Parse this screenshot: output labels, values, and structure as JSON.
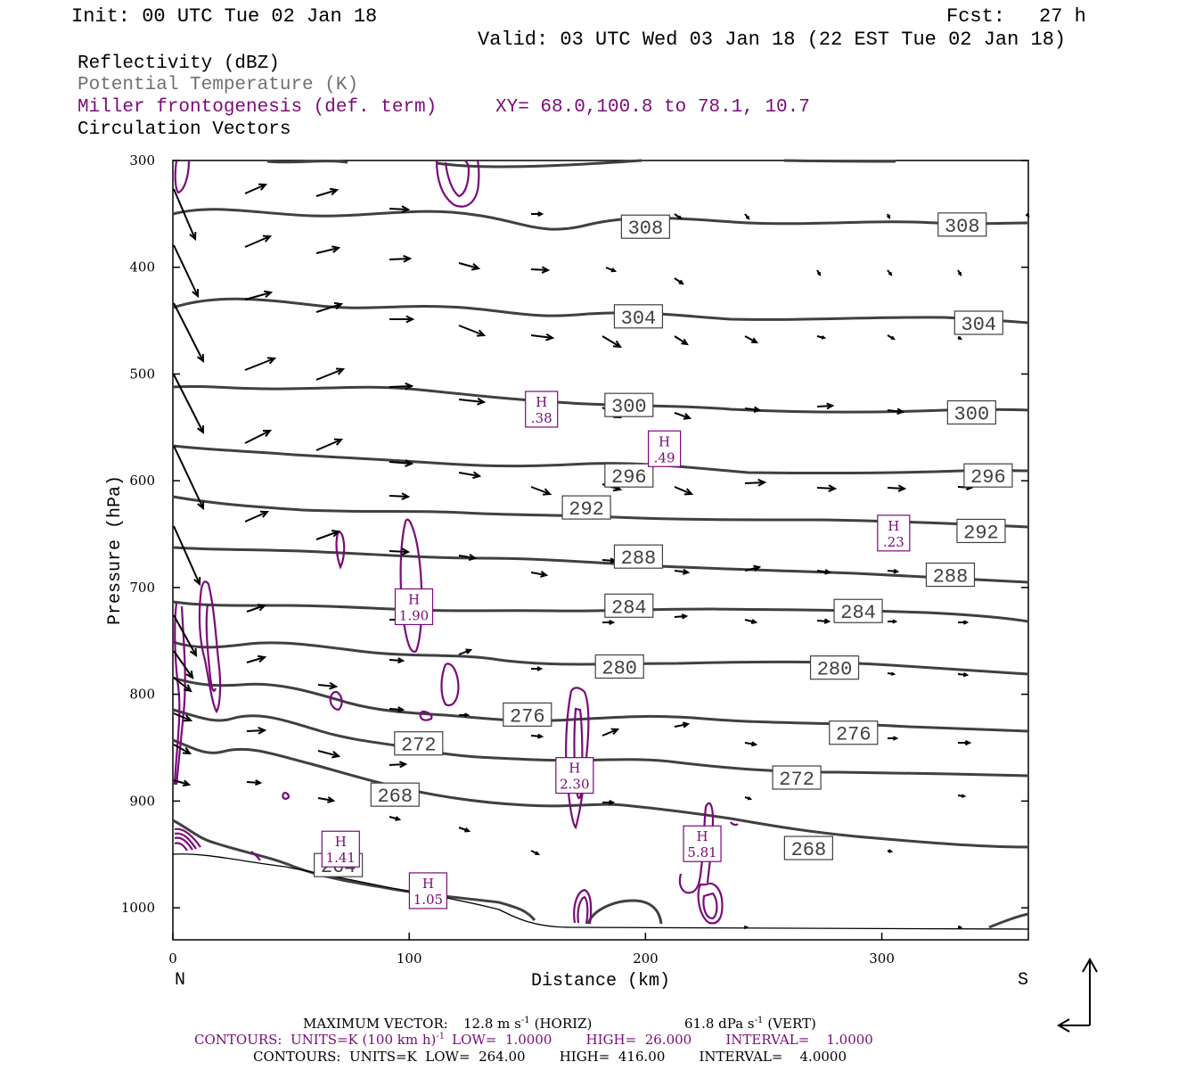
{
  "header": {
    "init": "Init: 00 UTC Tue 02 Jan 18",
    "fcst_label": "Fcst:",
    "fcst_value": "27 h",
    "valid": "Valid: 03 UTC Wed 03 Jan 18 (22 EST Tue 02 Jan 18)"
  },
  "legend": {
    "reflectivity": "Reflectivity (dBZ)",
    "theta": "Potential Temperature (K)",
    "frontogenesis": "Miller frontogenesis (def. term)",
    "xy": "XY=  68.0,100.8 to  78.1, 10.7",
    "vectors": "Circulation Vectors"
  },
  "colors": {
    "theta": "#404040",
    "frontogenesis": "#7a0a7a",
    "vector": "#000000",
    "frame": "#000000"
  },
  "chart_data": {
    "type": "cross-section",
    "xlabel": "Distance (km)",
    "ylabel": "Pressure (hPa)",
    "xlim": [
      0,
      362
    ],
    "ylim": [
      1030,
      300
    ],
    "x_ticks": [
      0,
      100,
      200,
      300
    ],
    "y_ticks": [
      300,
      400,
      500,
      600,
      700,
      800,
      900,
      1000
    ],
    "left_end": "N",
    "right_end": "S",
    "theta_labels": [
      {
        "text": "308",
        "x": 200,
        "p": 362
      },
      {
        "text": "308",
        "x": 334,
        "p": 360
      },
      {
        "text": "304",
        "x": 197,
        "p": 446
      },
      {
        "text": "304",
        "x": 341,
        "p": 452
      },
      {
        "text": "300",
        "x": 193,
        "p": 529
      },
      {
        "text": "300",
        "x": 338,
        "p": 536
      },
      {
        "text": "296",
        "x": 193,
        "p": 595
      },
      {
        "text": "296",
        "x": 345,
        "p": 595
      },
      {
        "text": "292",
        "x": 175,
        "p": 625
      },
      {
        "text": "292",
        "x": 342,
        "p": 647
      },
      {
        "text": "288",
        "x": 197,
        "p": 671
      },
      {
        "text": "288",
        "x": 329,
        "p": 688
      },
      {
        "text": "284",
        "x": 193,
        "p": 717
      },
      {
        "text": "284",
        "x": 290,
        "p": 722
      },
      {
        "text": "280",
        "x": 189,
        "p": 774
      },
      {
        "text": "280",
        "x": 280,
        "p": 775
      },
      {
        "text": "276",
        "x": 150,
        "p": 819
      },
      {
        "text": "276",
        "x": 288,
        "p": 836
      },
      {
        "text": "272",
        "x": 104,
        "p": 846
      },
      {
        "text": "272",
        "x": 264,
        "p": 878
      },
      {
        "text": "268",
        "x": 94,
        "p": 894
      },
      {
        "text": "268",
        "x": 269,
        "p": 944
      },
      {
        "text": "264",
        "x": 70,
        "p": 960
      }
    ],
    "frontogenesis_maxima": [
      {
        "label": "H",
        "value": ".38",
        "x": 156,
        "p": 533
      },
      {
        "label": "H",
        "value": ".49",
        "x": 208,
        "p": 570
      },
      {
        "label": "H",
        "value": ".23",
        "x": 305,
        "p": 649
      },
      {
        "label": "H",
        "value": "1.90",
        "x": 102,
        "p": 718
      },
      {
        "label": "H",
        "value": "2.30",
        "x": 170,
        "p": 876
      },
      {
        "label": "H",
        "value": "5.81",
        "x": 224,
        "p": 940
      },
      {
        "label": "H",
        "value": "1.41",
        "x": 71,
        "p": 945
      },
      {
        "label": "H",
        "value": "1.05",
        "x": 108,
        "p": 984
      }
    ]
  },
  "footer": {
    "max_vector_label": "MAXIMUM VECTOR:",
    "max_vector_horiz": "12.8 m s",
    "horiz_suffix": "(HORIZ)",
    "max_vector_vert": "61.8 dPa s",
    "vert_suffix": "(VERT)",
    "contours1_a": "CONTOURS:  UNITS=K (100 km h)",
    "contours1_b": "LOW=  1.0000        HIGH=  26.000        INTERVAL=    1.0000",
    "contours2": "CONTOURS:  UNITS=K  LOW=  264.00        HIGH=  416.00        INTERVAL=    4.0000",
    "exp": "-1"
  }
}
